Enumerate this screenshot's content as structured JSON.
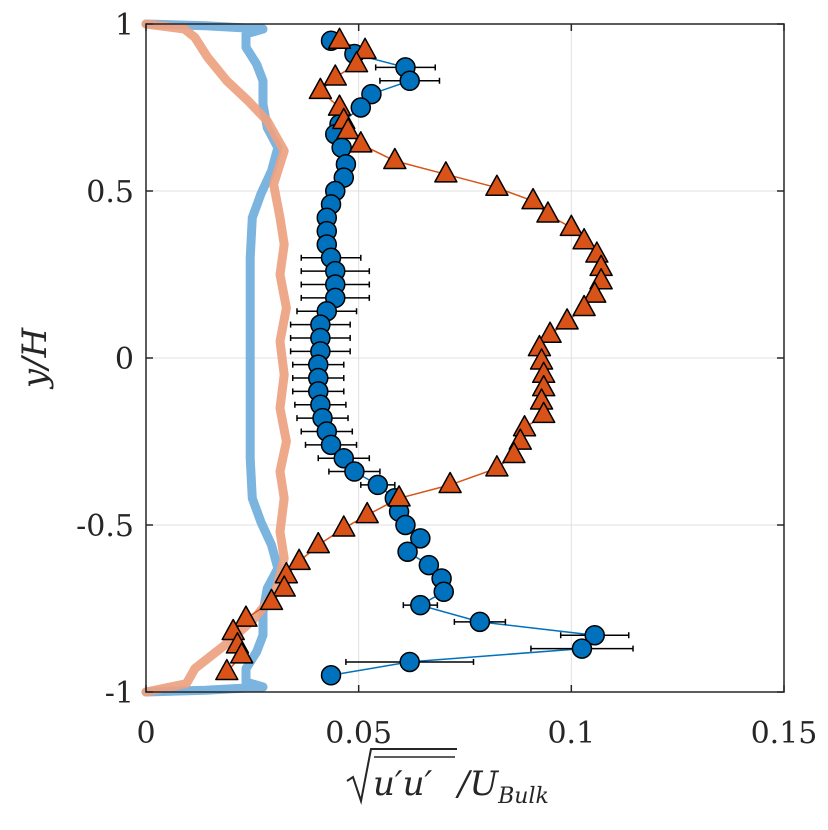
{
  "chart_data": {
    "type": "scatter",
    "xlabel": "√(u'u')/U_Bulk",
    "xlabel_parts": {
      "sqrt_arg": "u′u′",
      "denominator": "/U",
      "subscript": "Bulk"
    },
    "ylabel": "y/H",
    "xlim": [
      0,
      0.15
    ],
    "ylim": [
      -1,
      1
    ],
    "xticks": [
      0,
      0.05,
      0.1,
      0.15
    ],
    "xtick_labels": [
      "0",
      "0.05",
      "0.1",
      "0.15"
    ],
    "yticks": [
      -1,
      -0.5,
      0,
      0.5,
      1
    ],
    "ytick_labels": [
      "-1",
      "-0.5",
      "0",
      "0.5",
      "1"
    ],
    "grid": true,
    "colors": {
      "circle_fill": "#0072BD",
      "triangle_fill": "#D95319",
      "blue_line": "#6FAEDC",
      "orange_line": "#EDA180",
      "errorbar": "#000000"
    },
    "series": [
      {
        "marker": "circle",
        "points": [
          {
            "x": 0.0435,
            "y": 0.95,
            "err": 0
          },
          {
            "x": 0.049,
            "y": 0.91,
            "err": 0
          },
          {
            "x": 0.061,
            "y": 0.87,
            "err": 0.007
          },
          {
            "x": 0.062,
            "y": 0.83,
            "err": 0.007
          },
          {
            "x": 0.053,
            "y": 0.79,
            "err": 0
          },
          {
            "x": 0.0505,
            "y": 0.75,
            "err": 0
          },
          {
            "x": 0.0455,
            "y": 0.7,
            "err": 0
          },
          {
            "x": 0.0445,
            "y": 0.67,
            "err": 0
          },
          {
            "x": 0.046,
            "y": 0.63,
            "err": 0
          },
          {
            "x": 0.047,
            "y": 0.58,
            "err": 0
          },
          {
            "x": 0.0465,
            "y": 0.54,
            "err": 0
          },
          {
            "x": 0.0445,
            "y": 0.5,
            "err": 0
          },
          {
            "x": 0.0435,
            "y": 0.46,
            "err": 0
          },
          {
            "x": 0.0425,
            "y": 0.42,
            "err": 0
          },
          {
            "x": 0.0425,
            "y": 0.38,
            "err": 0
          },
          {
            "x": 0.0425,
            "y": 0.34,
            "err": 0
          },
          {
            "x": 0.0435,
            "y": 0.3,
            "err": 0.007
          },
          {
            "x": 0.0445,
            "y": 0.26,
            "err": 0.008
          },
          {
            "x": 0.0445,
            "y": 0.22,
            "err": 0.008
          },
          {
            "x": 0.0445,
            "y": 0.18,
            "err": 0.008
          },
          {
            "x": 0.0425,
            "y": 0.14,
            "err": 0.007
          },
          {
            "x": 0.041,
            "y": 0.1,
            "err": 0.007
          },
          {
            "x": 0.041,
            "y": 0.06,
            "err": 0.007
          },
          {
            "x": 0.041,
            "y": 0.02,
            "err": 0.007
          },
          {
            "x": 0.0405,
            "y": -0.02,
            "err": 0.006
          },
          {
            "x": 0.0405,
            "y": -0.06,
            "err": 0.006
          },
          {
            "x": 0.0405,
            "y": -0.1,
            "err": 0.006
          },
          {
            "x": 0.041,
            "y": -0.14,
            "err": 0.006
          },
          {
            "x": 0.0415,
            "y": -0.18,
            "err": 0.006
          },
          {
            "x": 0.0425,
            "y": -0.22,
            "err": 0.006
          },
          {
            "x": 0.0435,
            "y": -0.26,
            "err": 0.006
          },
          {
            "x": 0.0465,
            "y": -0.3,
            "err": 0.006
          },
          {
            "x": 0.049,
            "y": -0.34,
            "err": 0.006
          },
          {
            "x": 0.0545,
            "y": -0.38,
            "err": 0.004
          },
          {
            "x": 0.0585,
            "y": -0.42,
            "err": 0.002
          },
          {
            "x": 0.0595,
            "y": -0.46,
            "err": 0.002
          },
          {
            "x": 0.061,
            "y": -0.5,
            "err": 0.002
          },
          {
            "x": 0.0645,
            "y": -0.54,
            "err": 0.002
          },
          {
            "x": 0.0615,
            "y": -0.58,
            "err": 0.002
          },
          {
            "x": 0.0665,
            "y": -0.62,
            "err": 0.002
          },
          {
            "x": 0.0695,
            "y": -0.66,
            "err": 0.002
          },
          {
            "x": 0.07,
            "y": -0.7,
            "err": 0.002
          },
          {
            "x": 0.0645,
            "y": -0.74,
            "err": 0.004
          },
          {
            "x": 0.0785,
            "y": -0.79,
            "err": 0.006
          },
          {
            "x": 0.1055,
            "y": -0.83,
            "err": 0.008
          },
          {
            "x": 0.1025,
            "y": -0.87,
            "err": 0.012
          },
          {
            "x": 0.062,
            "y": -0.91,
            "err": 0.015
          },
          {
            "x": 0.0435,
            "y": -0.95,
            "err": 0
          }
        ]
      },
      {
        "marker": "triangle",
        "points": [
          {
            "x": 0.0455,
            "y": 0.95
          },
          {
            "x": 0.0515,
            "y": 0.92
          },
          {
            "x": 0.0495,
            "y": 0.88
          },
          {
            "x": 0.0445,
            "y": 0.84
          },
          {
            "x": 0.041,
            "y": 0.8
          },
          {
            "x": 0.0455,
            "y": 0.75
          },
          {
            "x": 0.0465,
            "y": 0.71
          },
          {
            "x": 0.0475,
            "y": 0.68
          },
          {
            "x": 0.0505,
            "y": 0.64
          },
          {
            "x": 0.0585,
            "y": 0.59
          },
          {
            "x": 0.0705,
            "y": 0.55
          },
          {
            "x": 0.0825,
            "y": 0.51
          },
          {
            "x": 0.091,
            "y": 0.47
          },
          {
            "x": 0.0945,
            "y": 0.43
          },
          {
            "x": 0.1,
            "y": 0.39
          },
          {
            "x": 0.103,
            "y": 0.35
          },
          {
            "x": 0.106,
            "y": 0.31
          },
          {
            "x": 0.107,
            "y": 0.27
          },
          {
            "x": 0.107,
            "y": 0.23
          },
          {
            "x": 0.1055,
            "y": 0.19
          },
          {
            "x": 0.103,
            "y": 0.15
          },
          {
            "x": 0.099,
            "y": 0.11
          },
          {
            "x": 0.095,
            "y": 0.07
          },
          {
            "x": 0.0925,
            "y": 0.03
          },
          {
            "x": 0.093,
            "y": -0.01
          },
          {
            "x": 0.0935,
            "y": -0.05
          },
          {
            "x": 0.0935,
            "y": -0.09
          },
          {
            "x": 0.093,
            "y": -0.13
          },
          {
            "x": 0.0935,
            "y": -0.17
          },
          {
            "x": 0.089,
            "y": -0.21
          },
          {
            "x": 0.088,
            "y": -0.25
          },
          {
            "x": 0.0865,
            "y": -0.29
          },
          {
            "x": 0.0825,
            "y": -0.33
          },
          {
            "x": 0.0715,
            "y": -0.38
          },
          {
            "x": 0.0595,
            "y": -0.42
          },
          {
            "x": 0.052,
            "y": -0.47
          },
          {
            "x": 0.0465,
            "y": -0.51
          },
          {
            "x": 0.0405,
            "y": -0.56
          },
          {
            "x": 0.036,
            "y": -0.61
          },
          {
            "x": 0.033,
            "y": -0.65
          },
          {
            "x": 0.0325,
            "y": -0.69
          },
          {
            "x": 0.0295,
            "y": -0.73
          },
          {
            "x": 0.0235,
            "y": -0.78
          },
          {
            "x": 0.0205,
            "y": -0.82
          },
          {
            "x": 0.0215,
            "y": -0.86
          },
          {
            "x": 0.0225,
            "y": -0.89
          },
          {
            "x": 0.019,
            "y": -0.94
          }
        ]
      },
      {
        "marker": "none",
        "style": "blue_line",
        "points": [
          {
            "x": 0.0,
            "y": 1.0
          },
          {
            "x": 0.014,
            "y": 0.995
          },
          {
            "x": 0.0275,
            "y": 0.985
          },
          {
            "x": 0.0235,
            "y": 0.97
          },
          {
            "x": 0.0235,
            "y": 0.93
          },
          {
            "x": 0.026,
            "y": 0.88
          },
          {
            "x": 0.0275,
            "y": 0.83
          },
          {
            "x": 0.0275,
            "y": 0.76
          },
          {
            "x": 0.0285,
            "y": 0.69
          },
          {
            "x": 0.031,
            "y": 0.63
          },
          {
            "x": 0.0295,
            "y": 0.56
          },
          {
            "x": 0.027,
            "y": 0.49
          },
          {
            "x": 0.025,
            "y": 0.42
          },
          {
            "x": 0.0245,
            "y": 0.3
          },
          {
            "x": 0.0245,
            "y": 0.1
          },
          {
            "x": 0.0245,
            "y": -0.1
          },
          {
            "x": 0.0245,
            "y": -0.3
          },
          {
            "x": 0.025,
            "y": -0.42
          },
          {
            "x": 0.027,
            "y": -0.49
          },
          {
            "x": 0.0295,
            "y": -0.56
          },
          {
            "x": 0.031,
            "y": -0.63
          },
          {
            "x": 0.0285,
            "y": -0.69
          },
          {
            "x": 0.0275,
            "y": -0.76
          },
          {
            "x": 0.0275,
            "y": -0.83
          },
          {
            "x": 0.026,
            "y": -0.88
          },
          {
            "x": 0.0235,
            "y": -0.93
          },
          {
            "x": 0.0235,
            "y": -0.97
          },
          {
            "x": 0.0275,
            "y": -0.985
          },
          {
            "x": 0.014,
            "y": -0.995
          },
          {
            "x": 0.0,
            "y": -1.0
          }
        ]
      },
      {
        "marker": "none",
        "style": "orange_line",
        "points": [
          {
            "x": 0.0,
            "y": 1.0
          },
          {
            "x": 0.009,
            "y": 0.985
          },
          {
            "x": 0.0115,
            "y": 0.96
          },
          {
            "x": 0.0145,
            "y": 0.9
          },
          {
            "x": 0.019,
            "y": 0.83
          },
          {
            "x": 0.024,
            "y": 0.77
          },
          {
            "x": 0.0285,
            "y": 0.71
          },
          {
            "x": 0.0325,
            "y": 0.62
          },
          {
            "x": 0.03,
            "y": 0.52
          },
          {
            "x": 0.0315,
            "y": 0.42
          },
          {
            "x": 0.0325,
            "y": 0.34
          },
          {
            "x": 0.0315,
            "y": 0.25
          },
          {
            "x": 0.033,
            "y": 0.15
          },
          {
            "x": 0.0315,
            "y": 0.05
          },
          {
            "x": 0.0325,
            "y": -0.05
          },
          {
            "x": 0.0315,
            "y": -0.15
          },
          {
            "x": 0.033,
            "y": -0.25
          },
          {
            "x": 0.0315,
            "y": -0.34
          },
          {
            "x": 0.0325,
            "y": -0.42
          },
          {
            "x": 0.0315,
            "y": -0.52
          },
          {
            "x": 0.0325,
            "y": -0.6
          },
          {
            "x": 0.0305,
            "y": -0.7
          },
          {
            "x": 0.0255,
            "y": -0.78
          },
          {
            "x": 0.0185,
            "y": -0.86
          },
          {
            "x": 0.0115,
            "y": -0.93
          },
          {
            "x": 0.0095,
            "y": -0.975
          },
          {
            "x": 0.0,
            "y": -1.0
          }
        ]
      }
    ]
  }
}
